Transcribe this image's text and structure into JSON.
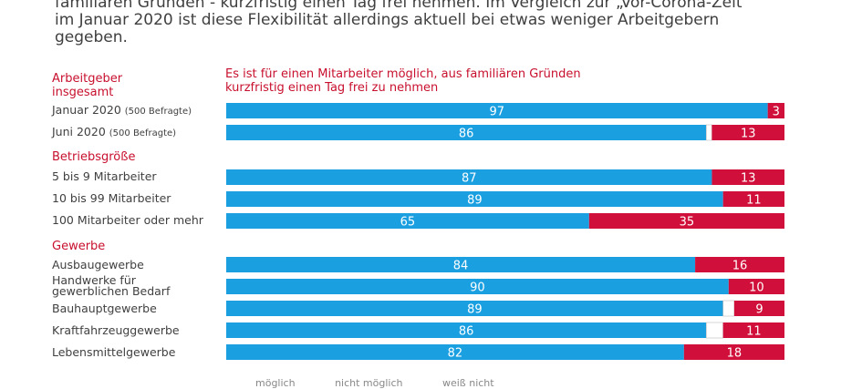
{
  "intro": {
    "line1": "familiären Gründen - kurzfristig einen Tag frei nehmen. Im Vergleich zur „Vor-Corona-Zeit“",
    "line2": "im Januar 2020 ist diese Flexibilität allerdings aktuell bei etwas weniger Arbeitgebern",
    "line3": "gegeben."
  },
  "chart_data": {
    "type": "bar",
    "title": "Es ist für einen Mitarbeiter möglich, aus familiären Gründen kurzfristig einen Tag frei zu nehmen",
    "title_line1": "Es ist für einen Mitarbeiter möglich, aus familiären Gründen",
    "title_line2": "kurzfristig einen Tag frei zu nehmen",
    "xlim": [
      0,
      100
    ],
    "colors": {
      "yes": "#1a9fe0",
      "no": "#d0103a",
      "rest": "#ffffff",
      "text": "#ffffff"
    },
    "groups": [
      {
        "label_line1": "Arbeitgeber",
        "label_line2": "insgesamt",
        "rows": [
          {
            "label": "Januar 2020",
            "note": "(500 Befragte)",
            "yes": 97,
            "no": 3
          },
          {
            "label": "Juni 2020",
            "note": "(500 Befragte)",
            "yes": 86,
            "no": 13
          }
        ]
      },
      {
        "label_line1": "Betriebsgröße",
        "rows": [
          {
            "label": "5 bis 9 Mitarbeiter",
            "yes": 87,
            "no": 13
          },
          {
            "label": "10 bis 99 Mitarbeiter",
            "yes": 89,
            "no": 11
          },
          {
            "label": "100 Mitarbeiter oder mehr",
            "yes": 65,
            "no": 35
          }
        ]
      },
      {
        "label_line1": "Gewerbe",
        "rows": [
          {
            "label": "Ausbaugewerbe",
            "yes": 84,
            "no": 16
          },
          {
            "label": "Handwerke für",
            "label2": "gewerblichen Bedarf",
            "yes": 90,
            "no": 10
          },
          {
            "label": "Bauhauptgewerbe",
            "yes": 89,
            "no": 9
          },
          {
            "label": "Kraftfahrzeuggewerbe",
            "yes": 86,
            "no": 11
          },
          {
            "label": "Lebensmittelgewerbe",
            "yes": 82,
            "no": 18
          }
        ]
      }
    ]
  },
  "legend": {
    "yes": "möglich",
    "no": "nicht möglich",
    "rest": "weiß nicht"
  }
}
